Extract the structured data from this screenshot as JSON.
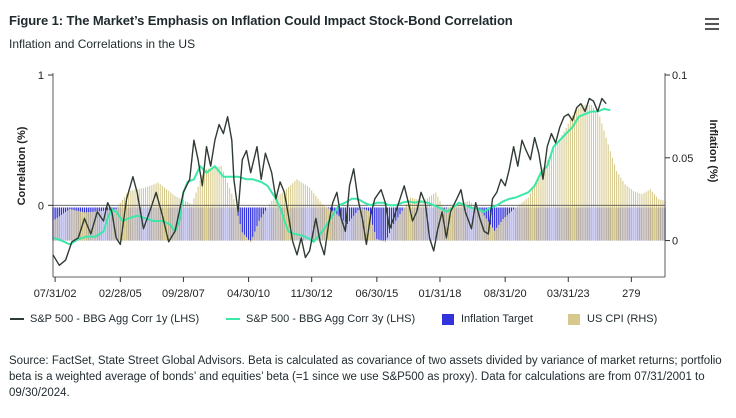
{
  "header": {
    "title": "Figure 1: The Market’s Emphasis on Inflation Could Impact Stock-Bond Correlation",
    "subtitle": "Inflation and Correlations in the US"
  },
  "menu_icon": "hamburger-menu-icon",
  "footer": {
    "source": "Source: FactSet, State Street Global Advisors. Beta is calculated as covariance of two assets divided by variance of market returns; portfolio beta is a weighted average of bonds’ and equities’ beta (=1 since we use S&P500 as proxy). Data for calculations are from 07/31/2001 to 09/30/2024."
  },
  "chart_data": {
    "type": "line",
    "ylabel_left": "Correlation (%)",
    "ylabel_right": "Inflation (%)",
    "left_axis": {
      "ylim": [
        -0.55,
        1
      ],
      "ticks": [
        1,
        0
      ]
    },
    "right_axis": {
      "ylim": [
        -0.022,
        0.1
      ],
      "ticks": [
        0.1,
        0.05,
        0
      ]
    },
    "x_tick_labels": [
      "07/31/02",
      "02/28/05",
      "09/28/07",
      "04/30/10",
      "11/30/12",
      "06/30/15",
      "01/31/18",
      "08/31/20",
      "03/31/23",
      "279"
    ],
    "x_tick_index": [
      1,
      32,
      62,
      93,
      123,
      154,
      184,
      215,
      245,
      275
    ],
    "n_points": 292,
    "colors": {
      "corr1y": "#2f3b33",
      "corr3y": "#3ce8a8",
      "target": "#3333dd",
      "cpi": "#d6c98b"
    },
    "series": [
      {
        "name": "S&P 500 - BBG Agg Corr 1y (LHS)",
        "axis": "left",
        "points": [
          [
            0,
            -0.38
          ],
          [
            3,
            -0.46
          ],
          [
            6,
            -0.42
          ],
          [
            9,
            -0.28
          ],
          [
            12,
            -0.25
          ],
          [
            15,
            -0.1
          ],
          [
            18,
            -0.22
          ],
          [
            21,
            -0.05
          ],
          [
            24,
            -0.12
          ],
          [
            26,
            0.02
          ],
          [
            28,
            -0.05
          ],
          [
            30,
            -0.25
          ],
          [
            32,
            -0.3
          ],
          [
            35,
            0.05
          ],
          [
            38,
            0.22
          ],
          [
            40,
            0.1
          ],
          [
            43,
            -0.18
          ],
          [
            46,
            -0.05
          ],
          [
            49,
            0.1
          ],
          [
            52,
            -0.08
          ],
          [
            55,
            -0.28
          ],
          [
            58,
            -0.2
          ],
          [
            60,
            -0.05
          ],
          [
            62,
            0.1
          ],
          [
            65,
            0.2
          ],
          [
            67,
            0.5
          ],
          [
            69,
            0.35
          ],
          [
            71,
            0.15
          ],
          [
            73,
            0.45
          ],
          [
            75,
            0.3
          ],
          [
            77,
            0.5
          ],
          [
            79,
            0.62
          ],
          [
            81,
            0.55
          ],
          [
            83,
            0.68
          ],
          [
            85,
            0.5
          ],
          [
            86,
            0.2
          ],
          [
            88,
            -0.05
          ],
          [
            90,
            0.35
          ],
          [
            92,
            0.42
          ],
          [
            94,
            0.25
          ],
          [
            97,
            0.45
          ],
          [
            99,
            0.2
          ],
          [
            101,
            0.4
          ],
          [
            104,
            0.25
          ],
          [
            106,
            0.05
          ],
          [
            108,
            0.18
          ],
          [
            110,
            0.1
          ],
          [
            112,
            -0.08
          ],
          [
            114,
            -0.28
          ],
          [
            116,
            -0.38
          ],
          [
            118,
            -0.25
          ],
          [
            120,
            -0.4
          ],
          [
            122,
            -0.35
          ],
          [
            125,
            -0.1
          ],
          [
            127,
            -0.28
          ],
          [
            129,
            -0.38
          ],
          [
            131,
            -0.15
          ],
          [
            133,
            0.02
          ],
          [
            135,
            0.1
          ],
          [
            137,
            -0.1
          ],
          [
            139,
            -0.2
          ],
          [
            141,
            0.15
          ],
          [
            143,
            0.28
          ],
          [
            145,
            0.05
          ],
          [
            147,
            -0.1
          ],
          [
            149,
            -0.3
          ],
          [
            151,
            -0.08
          ],
          [
            153,
            0.05
          ],
          [
            156,
            0.12
          ],
          [
            158,
            0.02
          ],
          [
            160,
            -0.18
          ],
          [
            162,
            -0.1
          ],
          [
            165,
            0.05
          ],
          [
            167,
            0.15
          ],
          [
            169,
            0.02
          ],
          [
            171,
            -0.12
          ],
          [
            173,
            -0.05
          ],
          [
            175,
            0.1
          ],
          [
            177,
            0.02
          ],
          [
            179,
            -0.25
          ],
          [
            181,
            -0.35
          ],
          [
            183,
            -0.18
          ],
          [
            185,
            -0.05
          ],
          [
            187,
            -0.25
          ],
          [
            189,
            -0.05
          ],
          [
            192,
            0.05
          ],
          [
            194,
            0.12
          ],
          [
            196,
            -0.05
          ],
          [
            199,
            -0.18
          ],
          [
            201,
            0.02
          ],
          [
            203,
            -0.1
          ],
          [
            205,
            -0.2
          ],
          [
            207,
            -0.22
          ],
          [
            209,
            0.05
          ],
          [
            211,
            0.1
          ],
          [
            213,
            0.2
          ],
          [
            215,
            0.15
          ],
          [
            217,
            0.28
          ],
          [
            219,
            0.45
          ],
          [
            221,
            0.3
          ],
          [
            223,
            0.5
          ],
          [
            225,
            0.42
          ],
          [
            227,
            0.35
          ],
          [
            229,
            0.52
          ],
          [
            231,
            0.4
          ],
          [
            233,
            0.2
          ],
          [
            235,
            0.45
          ],
          [
            237,
            0.55
          ],
          [
            239,
            0.48
          ],
          [
            241,
            0.6
          ],
          [
            243,
            0.68
          ],
          [
            245,
            0.7
          ],
          [
            247,
            0.65
          ],
          [
            249,
            0.75
          ],
          [
            251,
            0.78
          ],
          [
            253,
            0.72
          ],
          [
            255,
            0.82
          ],
          [
            257,
            0.8
          ],
          [
            259,
            0.72
          ],
          [
            261,
            0.82
          ],
          [
            263,
            0.78
          ]
        ]
      },
      {
        "name": "S&P 500 - BBG Agg Corr 3y (LHS)",
        "axis": "left",
        "points": [
          [
            0,
            -0.25
          ],
          [
            4,
            -0.27
          ],
          [
            8,
            -0.3
          ],
          [
            12,
            -0.26
          ],
          [
            16,
            -0.24
          ],
          [
            20,
            -0.24
          ],
          [
            24,
            -0.2
          ],
          [
            26,
            -0.1
          ],
          [
            28,
            -0.03
          ],
          [
            30,
            -0.05
          ],
          [
            33,
            -0.12
          ],
          [
            36,
            -0.1
          ],
          [
            40,
            -0.08
          ],
          [
            44,
            -0.1
          ],
          [
            48,
            -0.12
          ],
          [
            52,
            -0.12
          ],
          [
            56,
            -0.15
          ],
          [
            58,
            -0.2
          ],
          [
            60,
            -0.12
          ],
          [
            62,
            0.1
          ],
          [
            64,
            0.18
          ],
          [
            67,
            0.2
          ],
          [
            70,
            0.3
          ],
          [
            73,
            0.25
          ],
          [
            77,
            0.3
          ],
          [
            81,
            0.22
          ],
          [
            85,
            0.22
          ],
          [
            88,
            0.22
          ],
          [
            92,
            0.2
          ],
          [
            95,
            0.2
          ],
          [
            99,
            0.18
          ],
          [
            102,
            0.15
          ],
          [
            104,
            0.1
          ],
          [
            106,
            0.05
          ],
          [
            108,
            -0.02
          ],
          [
            110,
            -0.12
          ],
          [
            112,
            -0.2
          ],
          [
            115,
            -0.22
          ],
          [
            118,
            -0.23
          ],
          [
            121,
            -0.25
          ],
          [
            124,
            -0.28
          ],
          [
            127,
            -0.22
          ],
          [
            130,
            -0.15
          ],
          [
            133,
            -0.08
          ],
          [
            136,
            0.0
          ],
          [
            139,
            0.02
          ],
          [
            142,
            0.05
          ],
          [
            145,
            0.05
          ],
          [
            148,
            0.02
          ],
          [
            151,
            0.0
          ],
          [
            154,
            0.02
          ],
          [
            157,
            0.02
          ],
          [
            160,
            0.0
          ],
          [
            163,
            0.0
          ],
          [
            166,
            0.02
          ],
          [
            169,
            0.03
          ],
          [
            172,
            0.02
          ],
          [
            175,
            0.03
          ],
          [
            178,
            0.02
          ],
          [
            181,
            0.0
          ],
          [
            184,
            -0.02
          ],
          [
            187,
            -0.05
          ],
          [
            190,
            -0.02
          ],
          [
            193,
            0.02
          ],
          [
            196,
            0.0
          ],
          [
            199,
            -0.02
          ],
          [
            202,
            -0.03
          ],
          [
            205,
            -0.05
          ],
          [
            208,
            -0.02
          ],
          [
            211,
            0.0
          ],
          [
            214,
            0.03
          ],
          [
            217,
            0.05
          ],
          [
            220,
            0.06
          ],
          [
            223,
            0.08
          ],
          [
            226,
            0.1
          ],
          [
            229,
            0.15
          ],
          [
            232,
            0.25
          ],
          [
            235,
            0.3
          ],
          [
            238,
            0.45
          ],
          [
            241,
            0.5
          ],
          [
            244,
            0.55
          ],
          [
            247,
            0.6
          ],
          [
            250,
            0.68
          ],
          [
            253,
            0.7
          ],
          [
            256,
            0.72
          ],
          [
            259,
            0.72
          ],
          [
            262,
            0.74
          ],
          [
            265,
            0.73
          ]
        ]
      },
      {
        "name": "Inflation Target",
        "axis": "right",
        "value": 0.02
      },
      {
        "name": "US CPI (RHS)",
        "axis": "right",
        "points": [
          [
            0,
            0.012
          ],
          [
            8,
            0.019
          ],
          [
            15,
            0.017
          ],
          [
            24,
            0.018
          ],
          [
            30,
            0.019
          ],
          [
            36,
            0.03
          ],
          [
            44,
            0.032
          ],
          [
            50,
            0.035
          ],
          [
            58,
            0.027
          ],
          [
            66,
            0.022
          ],
          [
            72,
            0.043
          ],
          [
            80,
            0.045
          ],
          [
            86,
            0.025
          ],
          [
            90,
            0.005
          ],
          [
            94,
            -0.001
          ],
          [
            98,
            0.012
          ],
          [
            104,
            0.024
          ],
          [
            110,
            0.03
          ],
          [
            116,
            0.037
          ],
          [
            122,
            0.032
          ],
          [
            128,
            0.022
          ],
          [
            134,
            0.017
          ],
          [
            140,
            0.01
          ],
          [
            146,
            0.02
          ],
          [
            150,
            0.018
          ],
          [
            154,
            0.001
          ],
          [
            158,
            -0.001
          ],
          [
            162,
            0.01
          ],
          [
            166,
            0.018
          ],
          [
            170,
            0.026
          ],
          [
            176,
            0.024
          ],
          [
            182,
            0.029
          ],
          [
            186,
            0.019
          ],
          [
            192,
            0.022
          ],
          [
            198,
            0.024
          ],
          [
            204,
            0.017
          ],
          [
            210,
            0.006
          ],
          [
            214,
            0.013
          ],
          [
            220,
            0.02
          ],
          [
            226,
            0.026
          ],
          [
            232,
            0.042
          ],
          [
            238,
            0.055
          ],
          [
            244,
            0.068
          ],
          [
            248,
            0.078
          ],
          [
            252,
            0.082
          ],
          [
            256,
            0.082
          ],
          [
            260,
            0.075
          ],
          [
            264,
            0.058
          ],
          [
            268,
            0.042
          ],
          [
            272,
            0.034
          ],
          [
            276,
            0.03
          ],
          [
            280,
            0.028
          ],
          [
            284,
            0.031
          ],
          [
            288,
            0.025
          ],
          [
            291,
            0.024
          ]
        ]
      }
    ]
  },
  "legend": {
    "items": [
      {
        "label": "S&P 500 - BBG Agg Corr 1y (LHS)",
        "kind": "line",
        "color": "#2f3b33"
      },
      {
        "label": "S&P 500 - BBG Agg Corr 3y (LHS)",
        "kind": "line",
        "color": "#3ce8a8"
      },
      {
        "label": "Inflation Target",
        "kind": "box",
        "color": "#3333dd"
      },
      {
        "label": "US CPI (RHS)",
        "kind": "box",
        "color": "#d6c98b"
      }
    ]
  }
}
